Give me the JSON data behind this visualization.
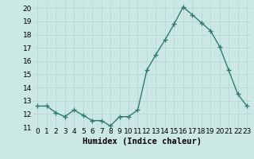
{
  "x": [
    0,
    1,
    2,
    3,
    4,
    5,
    6,
    7,
    8,
    9,
    10,
    11,
    12,
    13,
    14,
    15,
    16,
    17,
    18,
    19,
    20,
    21,
    22,
    23
  ],
  "y": [
    12.6,
    12.6,
    12.1,
    11.8,
    12.3,
    11.9,
    11.5,
    11.5,
    11.1,
    11.8,
    11.8,
    12.3,
    15.3,
    16.5,
    17.6,
    18.8,
    20.1,
    19.5,
    18.9,
    18.3,
    17.1,
    15.3,
    13.5,
    12.6
  ],
  "line_color": "#2e7d6e",
  "marker": "+",
  "marker_size": 4,
  "marker_lw": 1.0,
  "bg_color": "#cce8e4",
  "grid_color": "#b8d8d2",
  "xlabel": "Humidex (Indice chaleur)",
  "ylim": [
    11,
    20.5
  ],
  "xlim": [
    -0.5,
    23.5
  ],
  "yticks": [
    11,
    12,
    13,
    14,
    15,
    16,
    17,
    18,
    19,
    20
  ],
  "xticks": [
    0,
    1,
    2,
    3,
    4,
    5,
    6,
    7,
    8,
    9,
    10,
    11,
    12,
    13,
    14,
    15,
    16,
    17,
    18,
    19,
    20,
    21,
    22,
    23
  ],
  "xtick_labels": [
    "0",
    "1",
    "2",
    "3",
    "4",
    "5",
    "6",
    "7",
    "8",
    "9",
    "10",
    "11",
    "12",
    "13",
    "14",
    "15",
    "16",
    "17",
    "18",
    "19",
    "20",
    "21",
    "22",
    "23"
  ],
  "tick_fontsize": 6.5,
  "xlabel_fontsize": 7.5,
  "linewidth": 1.0
}
